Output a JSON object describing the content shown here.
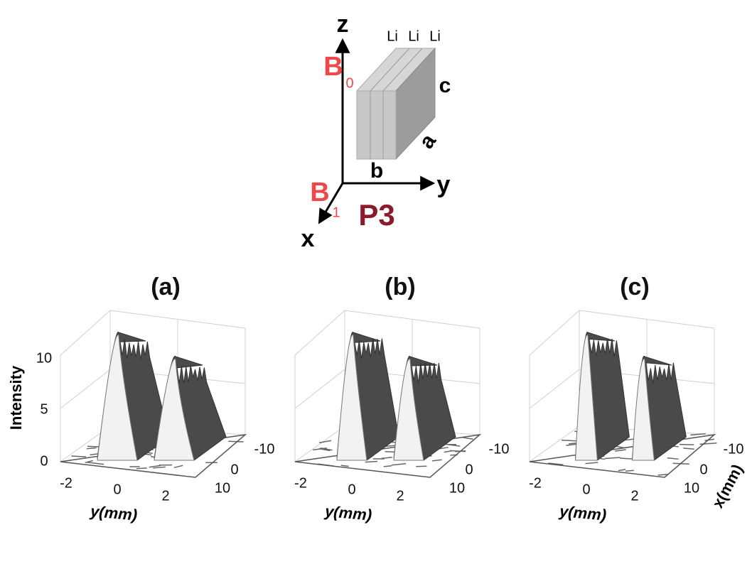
{
  "diagram": {
    "axes": {
      "z": "z",
      "y": "y",
      "x": "x"
    },
    "fields": [
      {
        "symbol": "B",
        "subscript": "0"
      },
      {
        "symbol": "B",
        "subscript": "1"
      }
    ],
    "crystal": {
      "layers": [
        "Li",
        "Li",
        "Li"
      ],
      "edges": {
        "c": "c",
        "a": "a",
        "b": "b"
      }
    },
    "label": "P3"
  },
  "panels": [
    {
      "title": "(a)",
      "z_title": "Intensity",
      "z_ticks": [
        "0",
        "5",
        "10"
      ],
      "y_ticks": [
        "-2",
        "0",
        "2"
      ],
      "y_title": "y(mm)",
      "x_ticks": [
        "-10",
        "0",
        "10"
      ]
    },
    {
      "title": "(b)",
      "y_ticks": [
        "-2",
        "0",
        "2"
      ],
      "y_title": "y(mm)",
      "x_ticks": [
        "-10",
        "0",
        "10"
      ]
    },
    {
      "title": "(c)",
      "y_ticks": [
        "-2",
        "0",
        "2"
      ],
      "y_title": "y(mm)",
      "x_ticks": [
        "-10",
        "0",
        "10"
      ],
      "x_title": "x(mm)"
    }
  ]
}
